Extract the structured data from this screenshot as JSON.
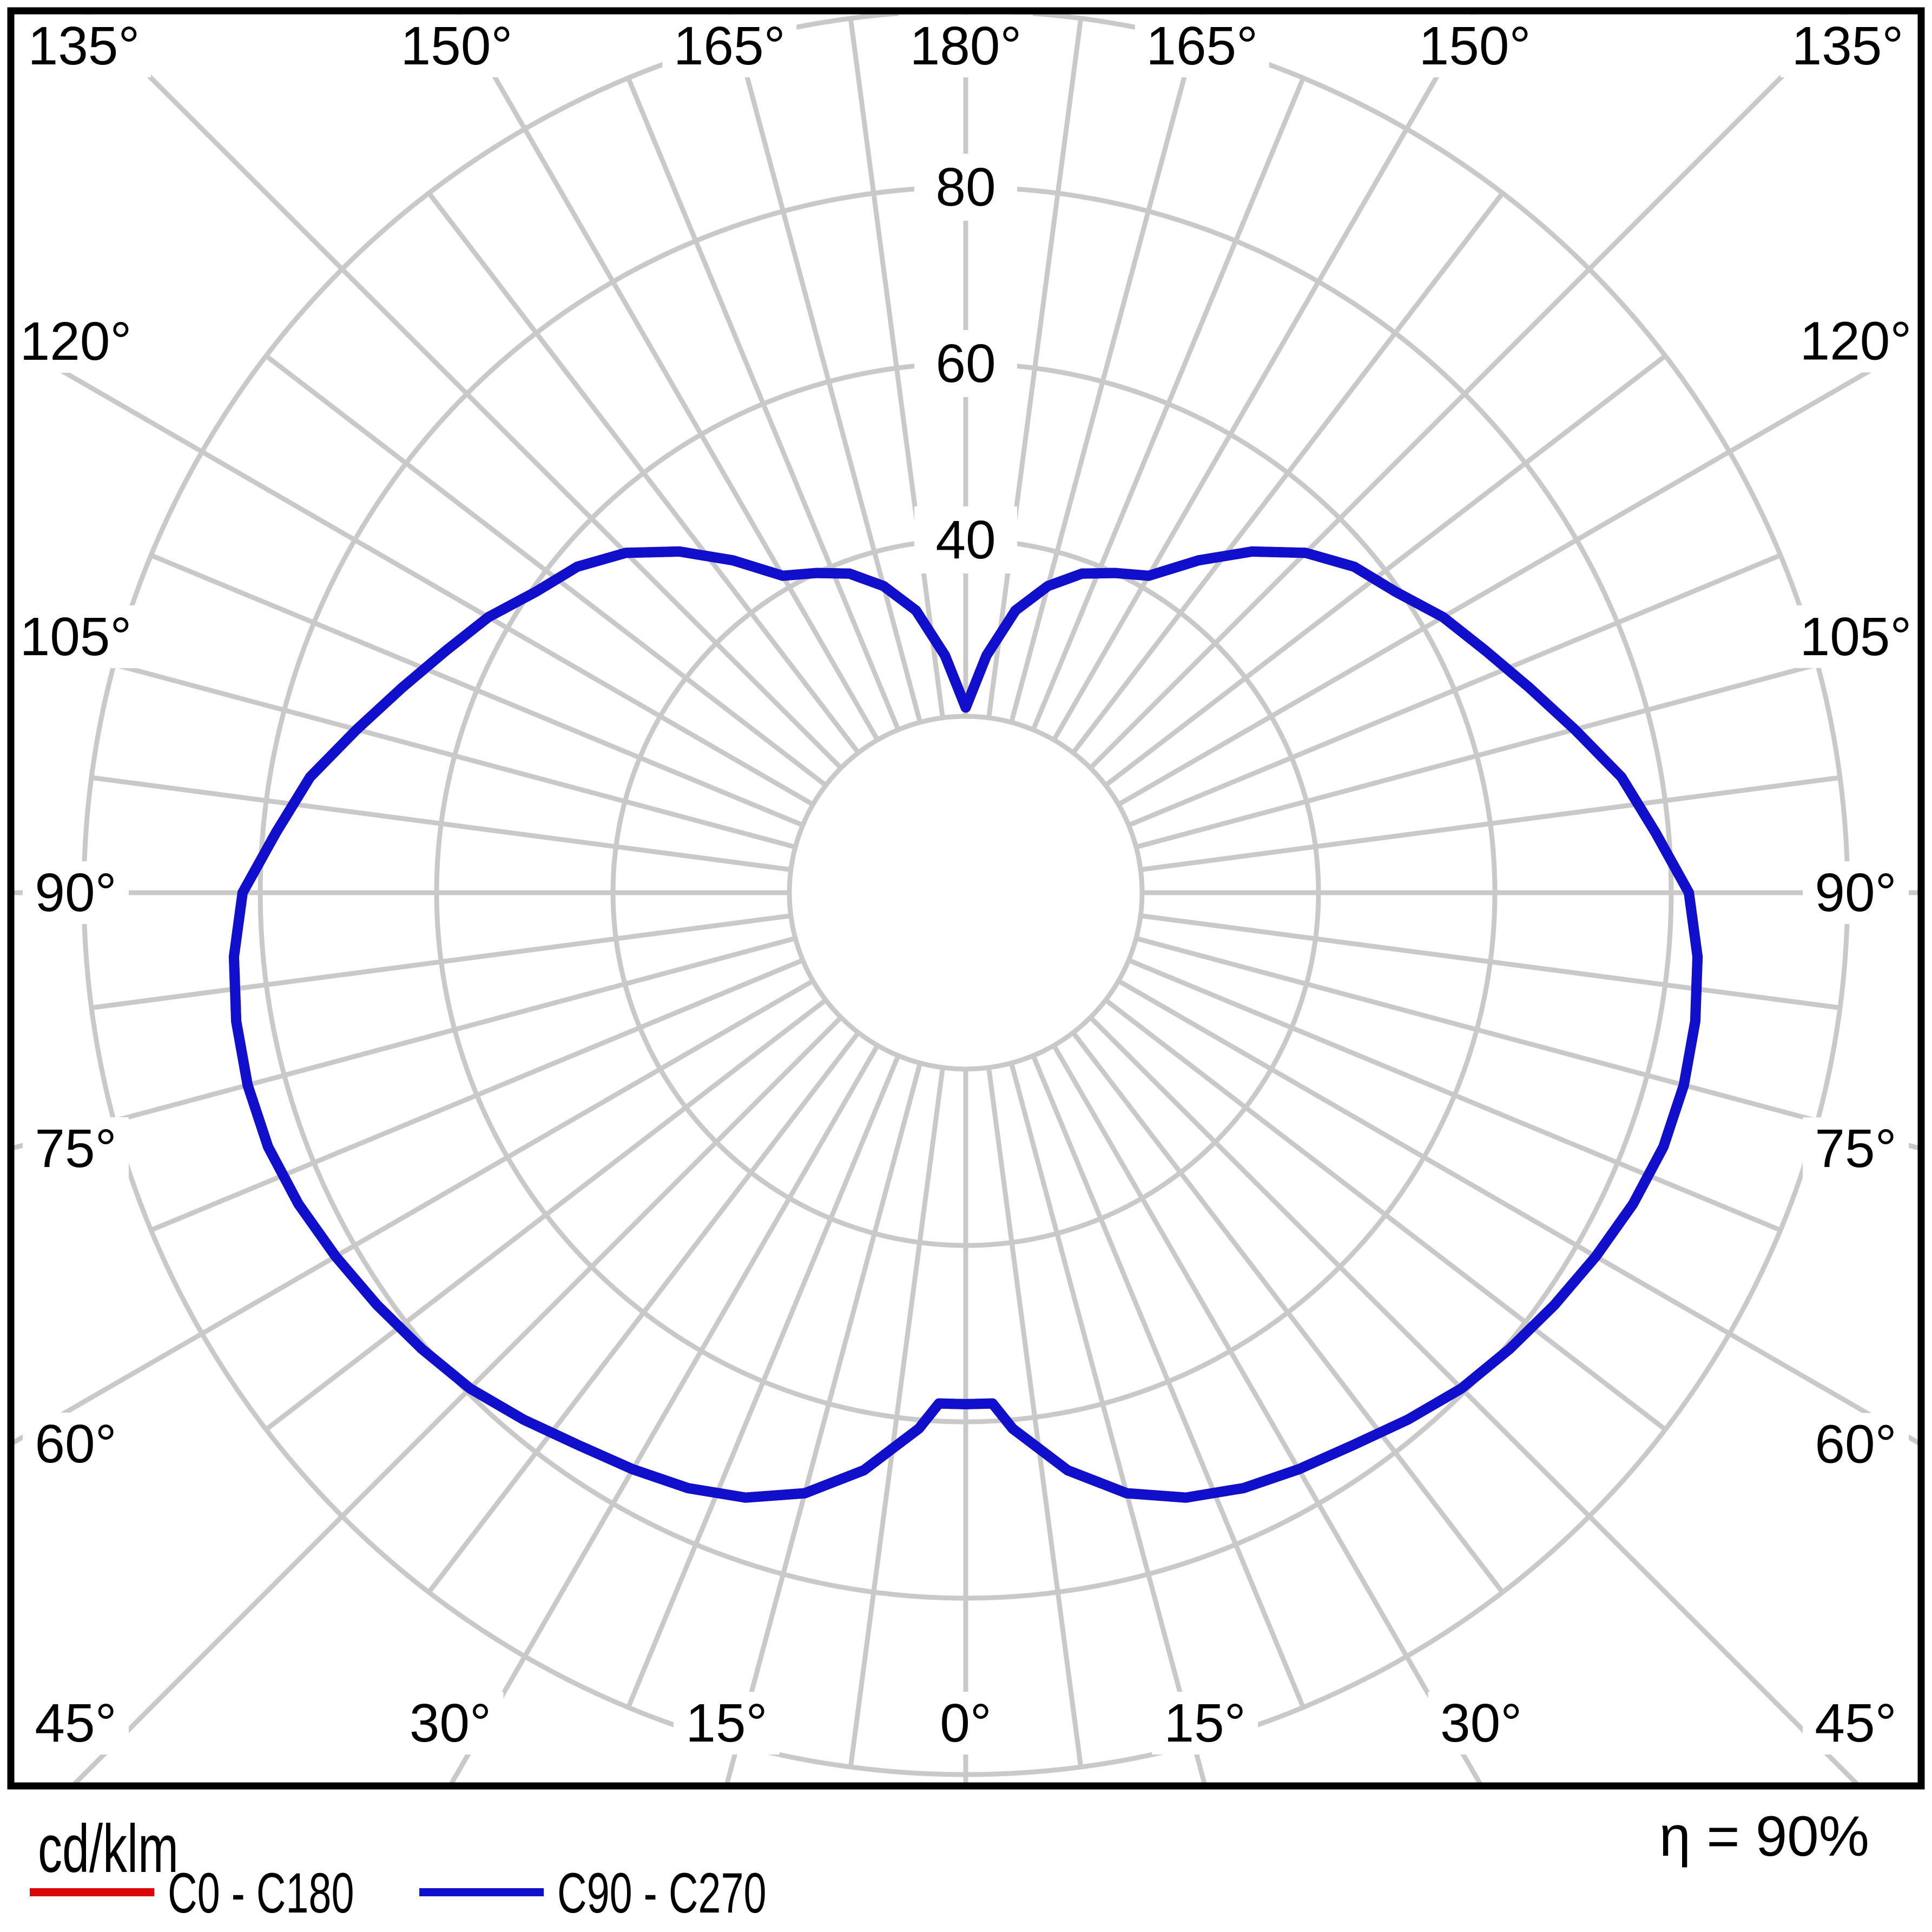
{
  "footer": {
    "unit": "cd/klm",
    "efficiency": "η = 90%",
    "legend": [
      {
        "label": "C0 - C180",
        "color": "#dc0505"
      },
      {
        "label": "C90 - C270",
        "color": "#0f0fcc"
      }
    ]
  },
  "chart_data": {
    "type": "line",
    "projection": "polar-photometric",
    "title": "",
    "units": "cd/klm",
    "efficiency_percent": 90,
    "rmax": 100,
    "ring_values": [
      20,
      40,
      60,
      80,
      100
    ],
    "ring_labels": [
      {
        "text": "40",
        "value": 40
      },
      {
        "text": "60",
        "value": 60
      },
      {
        "text": "80",
        "value": 80
      }
    ],
    "angle_step_minor_deg": 7.5,
    "angle_step_label_deg": 15,
    "angle_labels": [
      {
        "text": "135°",
        "gamma": 135,
        "side": -1
      },
      {
        "text": "150°",
        "gamma": 150,
        "side": -1
      },
      {
        "text": "165°",
        "gamma": 165,
        "side": -1
      },
      {
        "text": "180°",
        "gamma": 180,
        "side": 0
      },
      {
        "text": "165°",
        "gamma": 165,
        "side": 1
      },
      {
        "text": "150°",
        "gamma": 150,
        "side": 1
      },
      {
        "text": "135°",
        "gamma": 135,
        "side": 1
      },
      {
        "text": "120°",
        "gamma": 120,
        "side": -1
      },
      {
        "text": "105°",
        "gamma": 105,
        "side": -1
      },
      {
        "text": "90°",
        "gamma": 90,
        "side": -1
      },
      {
        "text": "75°",
        "gamma": 75,
        "side": -1
      },
      {
        "text": "60°",
        "gamma": 60,
        "side": -1
      },
      {
        "text": "120°",
        "gamma": 120,
        "side": 1
      },
      {
        "text": "105°",
        "gamma": 105,
        "side": 1
      },
      {
        "text": "90°",
        "gamma": 90,
        "side": 1
      },
      {
        "text": "75°",
        "gamma": 75,
        "side": 1
      },
      {
        "text": "60°",
        "gamma": 60,
        "side": 1
      },
      {
        "text": "45°",
        "gamma": 45,
        "side": -1
      },
      {
        "text": "30°",
        "gamma": 30,
        "side": -1
      },
      {
        "text": "15°",
        "gamma": 15,
        "side": -1
      },
      {
        "text": "0°",
        "gamma": 0,
        "side": 0
      },
      {
        "text": "15°",
        "gamma": 15,
        "side": 1
      },
      {
        "text": "30°",
        "gamma": 30,
        "side": 1
      },
      {
        "text": "45°",
        "gamma": 45,
        "side": 1
      }
    ],
    "gamma_deg": [
      0,
      3,
      5,
      10,
      15,
      20,
      25,
      30,
      35,
      40,
      45,
      50,
      55,
      60,
      65,
      70,
      75,
      80,
      85,
      90,
      95,
      100,
      105,
      110,
      115,
      120,
      125,
      130,
      135,
      140,
      145,
      150,
      155,
      160,
      165,
      170,
      175,
      180
    ],
    "series": [
      {
        "name": "C0 - C180",
        "color": "#dc0505",
        "values": [
          58,
          58,
          61,
          66.5,
          70.5,
          73,
          74.5,
          75.5,
          76.5,
          78,
          79.5,
          80.5,
          81.5,
          82.5,
          83.5,
          84.2,
          84.3,
          84,
          83.3,
          82,
          78.5,
          75.5,
          71.5,
          68,
          65,
          62.5,
          59.5,
          57.5,
          54.5,
          50.5,
          46,
          41.5,
          40,
          38.5,
          36,
          32.5,
          27,
          21
        ]
      },
      {
        "name": "C90 - C270",
        "color": "#0f0fcc",
        "values": [
          58,
          58,
          61,
          66.5,
          70.5,
          73,
          74.5,
          75.5,
          76.5,
          78,
          79.5,
          80.5,
          81.5,
          82.5,
          83.5,
          84.2,
          84.3,
          84,
          83.3,
          82,
          78.5,
          75.5,
          71.5,
          68,
          65,
          62.5,
          59.5,
          57.5,
          54.5,
          50.5,
          46,
          41.5,
          40,
          38.5,
          36,
          32.5,
          27,
          21
        ]
      }
    ],
    "symmetric_left_right": true,
    "legend_position": "bottom-left",
    "grid": true,
    "colors": {
      "grid": "#c9c9c9",
      "border": "#000000",
      "background": "#ffffff"
    }
  }
}
